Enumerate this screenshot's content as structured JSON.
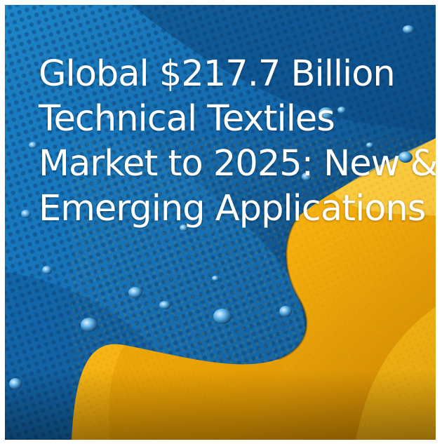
{
  "headline": {
    "lines": [
      "Global $217.7 Billion",
      "Technical Textiles",
      "Market to 2025: New &",
      "Emerging Applications"
    ]
  },
  "image": {
    "subject": "blue and yellow technical textile fabric with water droplets",
    "colors": {
      "fabric_blue": "#1572b8",
      "fabric_yellow": "#f7b510",
      "text": "#ffffff"
    }
  }
}
